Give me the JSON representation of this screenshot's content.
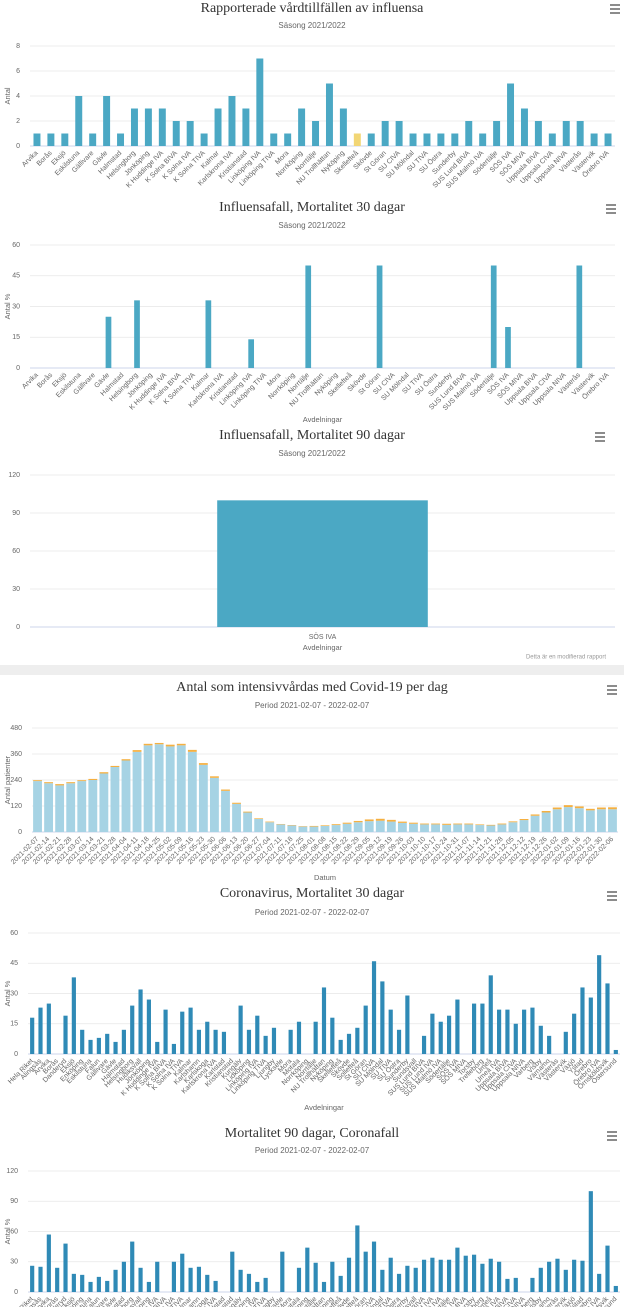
{
  "chart_data": [
    {
      "type": "bar",
      "title": "Rapporterade vårdtillfällen av influensa",
      "subtitle": "Säsong 2021/2022",
      "y_label": "Antal",
      "categories": [
        "Arvika",
        "Borås",
        "Eksjö",
        "Eskilstuna",
        "Gällivare",
        "Gävle",
        "Halmstad",
        "Helsingborg",
        "Jönköping",
        "K Huddinge IVA",
        "K Solna BIVA",
        "K Solna IVA",
        "K Solna TIVA",
        "Kalmar",
        "Karlskrona IVA",
        "Kristianstad",
        "Linköping IVA",
        "Linköping TIVA",
        "Mora",
        "Norrköping",
        "Norrtälje",
        "NU Trollhättan",
        "Nyköping",
        "Skellefteå",
        "Skövde",
        "St Göran",
        "SU CIVA",
        "SU Mölndal",
        "SU TIVA",
        "SU Östra",
        "Sunderby",
        "SUS Lund BIVA",
        "SUS Malmö IVA",
        "Södertälje",
        "SÖS IVA",
        "SÖS MIVA",
        "Uppsala BIVA",
        "Uppsala CIVA",
        "Uppsala NIVA",
        "Västerås",
        "Västervik",
        "Örebro IVA"
      ],
      "values": [
        1,
        1,
        1,
        4,
        1,
        4,
        1,
        3,
        3,
        3,
        2,
        2,
        1,
        3,
        4,
        3,
        7,
        1,
        1,
        3,
        2,
        5,
        3,
        1,
        1,
        2,
        2,
        1,
        1,
        1,
        1,
        2,
        1,
        2,
        5,
        3,
        2,
        1,
        2,
        2,
        1,
        1
      ],
      "colors": [
        "#4ba8c4",
        "#4ba8c4",
        "#4ba8c4",
        "#4ba8c4",
        "#4ba8c4",
        "#4ba8c4",
        "#4ba8c4",
        "#4ba8c4",
        "#4ba8c4",
        "#4ba8c4",
        "#4ba8c4",
        "#4ba8c4",
        "#4ba8c4",
        "#4ba8c4",
        "#4ba8c4",
        "#4ba8c4",
        "#4ba8c4",
        "#4ba8c4",
        "#4ba8c4",
        "#4ba8c4",
        "#4ba8c4",
        "#4ba8c4",
        "#4ba8c4",
        "#f2d675",
        "#4ba8c4",
        "#4ba8c4",
        "#4ba8c4",
        "#4ba8c4",
        "#4ba8c4",
        "#4ba8c4",
        "#4ba8c4",
        "#4ba8c4",
        "#4ba8c4",
        "#4ba8c4",
        "#4ba8c4",
        "#4ba8c4",
        "#4ba8c4",
        "#4ba8c4",
        "#4ba8c4",
        "#4ba8c4",
        "#4ba8c4",
        "#4ba8c4"
      ],
      "ylim": [
        0,
        8
      ],
      "yticks": [
        0,
        2,
        4,
        6,
        8
      ],
      "grid": true
    },
    {
      "type": "bar",
      "title": "Influensafall, Mortalitet 30 dagar",
      "subtitle": "Säsong 2021/2022",
      "y_label": "Antal %",
      "x_label": "Avdelningar",
      "categories": [
        "Arvika",
        "Borås",
        "Eksjö",
        "Eskilstuna",
        "Gällivare",
        "Gävle",
        "Halmstad",
        "Helsingborg",
        "Jönköping",
        "K Huddinge IVA",
        "K Solna BIVA",
        "K Solna TIVA",
        "Kalmar",
        "Karlskrona IVA",
        "Kristianstad",
        "Linköping IVA",
        "Linköping TIVA",
        "Mora",
        "Norrköping",
        "Norrtälje",
        "NU Trollhättan",
        "Nyköping",
        "Skellefteå",
        "Skövde",
        "St Göran",
        "SU CIVA",
        "SU Mölndal",
        "SU TIVA",
        "SU Östra",
        "Sunderby",
        "SUS Lund BIVA",
        "SUS Malmö IVA",
        "Södertälje",
        "SÖS IVA",
        "SÖS MIVA",
        "Uppsala BIVA",
        "Uppsala CIVA",
        "Uppsala NIVA",
        "Västerås",
        "Västervik",
        "Örebro IVA"
      ],
      "values": [
        0,
        0,
        0,
        0,
        0,
        25,
        0,
        33,
        0,
        0,
        0,
        0,
        33,
        0,
        0,
        14,
        0,
        0,
        0,
        50,
        0,
        0,
        0,
        0,
        50,
        0,
        0,
        0,
        0,
        0,
        0,
        0,
        50,
        20,
        0,
        0,
        0,
        0,
        50,
        0,
        0
      ],
      "color": "#4ba8c4",
      "ylim": [
        0,
        60
      ],
      "yticks": [
        0,
        15,
        30,
        45,
        60
      ],
      "grid": true
    },
    {
      "type": "bar",
      "title": "Influensafall, Mortalitet 90 dagar",
      "subtitle": "Säsong 2021/2022",
      "x_label": "Avdelningar",
      "categories": [
        "SÖS IVA"
      ],
      "values": [
        100
      ],
      "color": "#4ba8c4",
      "ylim": [
        0,
        120
      ],
      "yticks": [
        0,
        30,
        60,
        90,
        120
      ],
      "grid": true,
      "credits": "Detta är en modifierad rapport"
    },
    {
      "type": "bar",
      "stacked": true,
      "title": "Antal som intensivvårdas med Covid-19 per dag",
      "subtitle": "Period 2021-02-07 - 2022-02-07",
      "y_label": "Antal patienter",
      "x_label": "Datum",
      "categories": [
        "2021-02-07",
        "2021-02-14",
        "2021-02-21",
        "2021-02-28",
        "2021-03-07",
        "2021-03-14",
        "2021-03-21",
        "2021-03-28",
        "2021-04-04",
        "2021-04-11",
        "2021-04-18",
        "2021-04-25",
        "2021-05-02",
        "2021-05-09",
        "2021-05-16",
        "2021-05-23",
        "2021-05-30",
        "2021-06-06",
        "2021-06-13",
        "2021-06-20",
        "2021-06-27",
        "2021-07-04",
        "2021-07-11",
        "2021-07-18",
        "2021-07-25",
        "2021-08-01",
        "2021-08-08",
        "2021-08-15",
        "2021-08-22",
        "2021-08-29",
        "2021-09-05",
        "2021-09-12",
        "2021-09-19",
        "2021-09-26",
        "2021-10-03",
        "2021-10-10",
        "2021-10-17",
        "2021-10-24",
        "2021-10-31",
        "2021-11-07",
        "2021-11-14",
        "2021-11-21",
        "2021-11-28",
        "2021-12-05",
        "2021-12-12",
        "2021-12-19",
        "2021-12-26",
        "2022-01-02",
        "2022-01-09",
        "2022-01-16",
        "2022-01-23",
        "2022-01-30",
        "2022-02-06"
      ],
      "series": [
        {
          "color": "#a6d3e4",
          "values": [
            235,
            225,
            215,
            225,
            235,
            240,
            270,
            300,
            330,
            370,
            400,
            405,
            395,
            400,
            370,
            310,
            250,
            190,
            130,
            90,
            60,
            45,
            35,
            30,
            25,
            25,
            28,
            32,
            38,
            45,
            50,
            52,
            48,
            42,
            38,
            35,
            35,
            33,
            35,
            35,
            32,
            30,
            35,
            45,
            55,
            75,
            90,
            105,
            115,
            110,
            100,
            105,
            105
          ]
        },
        {
          "color": "#f5b041",
          "values": [
            4,
            5,
            6,
            5,
            4,
            5,
            6,
            5,
            6,
            8,
            7,
            6,
            8,
            7,
            9,
            8,
            7,
            6,
            5,
            4,
            3,
            3,
            2,
            2,
            2,
            3,
            3,
            4,
            5,
            6,
            8,
            9,
            8,
            6,
            5,
            4,
            4,
            5,
            4,
            4,
            3,
            3,
            4,
            4,
            5,
            6,
            7,
            8,
            9,
            8,
            7,
            8,
            9
          ]
        }
      ],
      "ylim": [
        0,
        480
      ],
      "yticks": [
        0,
        120,
        240,
        360,
        480
      ],
      "grid": true
    },
    {
      "type": "bar",
      "title": "Coronavirus, Mortalitet 30 dagar",
      "subtitle": "Period 2021-02-07 - 2022-02-07",
      "y_label": "Antal %",
      "x_label": "Avdelningar",
      "categories": [
        "Hela Riket",
        "Alingsås",
        "Arvika",
        "Borås",
        "Danderyd",
        "Eksjö",
        "Enköping",
        "Eskilstuna",
        "Falun",
        "Gällivare",
        "Gävle",
        "Halmstad",
        "Helsingborg",
        "Hudiksvall",
        "Jönköping",
        "K Huddinge IVA",
        "K Solna BIVA",
        "K Solna IVA",
        "K Solna TIVA",
        "Kalmar",
        "Karlshamn",
        "Karlskoga",
        "Karlskrona IVA",
        "Karlstad",
        "Kristianstad",
        "Kungälv",
        "Lidköping",
        "Linköping IVA",
        "Linköping TIVA",
        "Ljungby",
        "Lycksele",
        "Mora",
        "Motala",
        "Norrköping",
        "Norrtälje",
        "NU Trollhättan",
        "Nyköping",
        "Skellefteå",
        "Skövde",
        "Sollefteå",
        "St Göran",
        "SU CIVA",
        "SU Mölndal",
        "SU TIVA",
        "SU Östra",
        "Sunderby",
        "Sundsvall",
        "SUS Lund BIVA",
        "SUS Lund IVA",
        "SUS Malmö IVA",
        "Södertälje",
        "SÖS IVA",
        "SÖS MIVA",
        "Torsby",
        "Trelleborg",
        "Umeå",
        "Umeå IVA",
        "Uppsala BIVA",
        "Uppsala CIVA",
        "Uppsala NIVA",
        "Varberg",
        "Visby",
        "Värnamo",
        "Västerås",
        "Västervik",
        "Växjö",
        "Ystad",
        "Örebro",
        "Örebro IVA",
        "Örnsköldsvik",
        "Östersund"
      ],
      "values": [
        18,
        23,
        25,
        0,
        19,
        38,
        12,
        7,
        8,
        10,
        6,
        12,
        24,
        32,
        27,
        6,
        22,
        5,
        21,
        23,
        12,
        16,
        12,
        11,
        0,
        24,
        12,
        19,
        9,
        13,
        0,
        12,
        16,
        0,
        16,
        33,
        18,
        7,
        10,
        13,
        24,
        46,
        36,
        22,
        12,
        29,
        0,
        9,
        20,
        16,
        19,
        27,
        0,
        25,
        25,
        39,
        22,
        22,
        15,
        22,
        23,
        14,
        9,
        0,
        11,
        20,
        33,
        28,
        49,
        35,
        2
      ],
      "color": "#2f8ab6",
      "ylim": [
        0,
        60
      ],
      "yticks": [
        0,
        15,
        30,
        45,
        60
      ],
      "grid": true
    },
    {
      "type": "bar",
      "title": "Mortalitet 90 dagar, Coronafall",
      "subtitle": "Period 2021-02-07 - 2022-02-07",
      "y_label": "Antal %",
      "categories": [
        "Hela Riket",
        "Alingsås",
        "Arvika",
        "Borås",
        "Danderyd",
        "Eksjö",
        "Enköping",
        "Eskilstuna",
        "Falun",
        "Gällivare",
        "Gävle",
        "Halmstad",
        "Helsingborg",
        "Hudiksvall",
        "Jönköping",
        "K Huddinge IVA",
        "K Solna BIVA",
        "K Solna IVA",
        "K Solna TIVA",
        "Kalmar",
        "Karlshamn",
        "Karlskoga",
        "Karlskrona IVA",
        "Karlstad",
        "Kristianstad",
        "Kungälv",
        "Lidköping",
        "Linköping IVA",
        "Linköping TIVA",
        "Ljungby",
        "Lycksele",
        "Mora",
        "Motala",
        "Norrköping",
        "Norrtälje",
        "NU Trollhättan",
        "Nyköping",
        "Skellefteå",
        "Skövde",
        "Sollefteå",
        "St Göran",
        "SU CIVA",
        "SU Mölndal",
        "SU TIVA",
        "SU Östra",
        "Sunderby",
        "Sundsvall",
        "SUS Lund BIVA",
        "SUS Lund IVA",
        "SUS Malmö IVA",
        "Södertälje",
        "SÖS IVA",
        "SÖS MIVA",
        "Torsby",
        "Trelleborg",
        "Umeå",
        "Umeå IVA",
        "Uppsala BIVA",
        "Uppsala CIVA",
        "Uppsala NIVA",
        "Varberg",
        "Visby",
        "Värnamo",
        "Västerås",
        "Västervik",
        "Växjö",
        "Ystad",
        "Örebro",
        "Örebro IVA",
        "Örnsköldsvik",
        "Östersund"
      ],
      "values": [
        26,
        25,
        57,
        24,
        48,
        18,
        17,
        10,
        15,
        11,
        22,
        30,
        50,
        24,
        10,
        30,
        0,
        30,
        38,
        24,
        25,
        17,
        11,
        0,
        40,
        22,
        18,
        10,
        14,
        0,
        40,
        0,
        24,
        44,
        29,
        10,
        30,
        16,
        34,
        66,
        40,
        50,
        22,
        34,
        18,
        26,
        24,
        32,
        34,
        32,
        32,
        44,
        36,
        37,
        28,
        33,
        30,
        13,
        14,
        0,
        14,
        24,
        30,
        33,
        22,
        32,
        31,
        100,
        18,
        46,
        6
      ],
      "color": "#2f8ab6",
      "ylim": [
        0,
        120
      ],
      "yticks": [
        0,
        30,
        60,
        90,
        120
      ],
      "grid": true
    }
  ]
}
